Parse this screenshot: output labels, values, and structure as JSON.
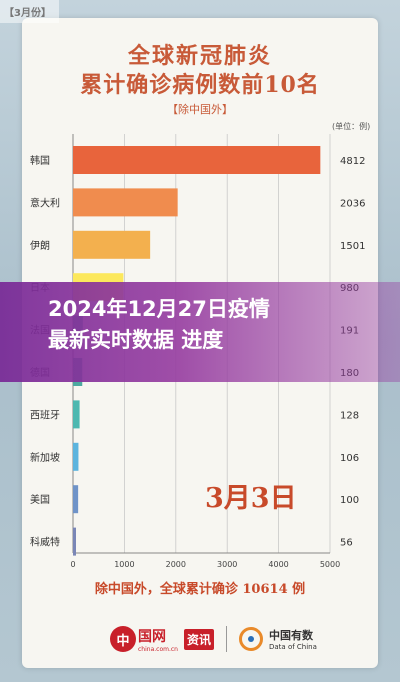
{
  "corner_tag": "【3月份】",
  "chart_data": {
    "type": "bar",
    "orientation": "horizontal",
    "title": "全球新冠肺炎",
    "title_line2": "累计确诊病例数前10名",
    "subtitle": "【除中国外】",
    "unit": "(单位：例)",
    "categories": [
      "韩国",
      "意大利",
      "伊朗",
      "日本",
      "法国",
      "德国",
      "西班牙",
      "新加坡",
      "美国",
      "科威特"
    ],
    "values": [
      4812,
      2036,
      1501,
      980,
      191,
      180,
      128,
      106,
      100,
      56
    ],
    "value_labels": [
      "4812",
      "2036",
      "1501",
      "980",
      "191",
      "180",
      "128",
      "106",
      "100",
      "56"
    ],
    "bar_colors": [
      "#e8643c",
      "#f08c4e",
      "#f3b04e",
      "#fce85c",
      "#4da9a0",
      "#4da9a0",
      "#4db8b0",
      "#5cb4de",
      "#6f93c8",
      "#7a86b6"
    ],
    "xlim": [
      0,
      5000
    ],
    "xticks": [
      "0",
      "1000",
      "2000",
      "3000",
      "4000",
      "5000"
    ],
    "grid": true,
    "annotation": "3月3日",
    "footer": "除中国外，全球累计确诊 10614 例"
  },
  "banner": {
    "line1": "2024年12月27日疫情",
    "line2": "最新实时数据 进度"
  },
  "logos": {
    "chinanet_mark": "中",
    "chinanet_word": "国网",
    "chinanet_sub": "china.com.cn",
    "zixun": "资讯",
    "doc_cn": "中国有数",
    "doc_en": "Data of China"
  }
}
